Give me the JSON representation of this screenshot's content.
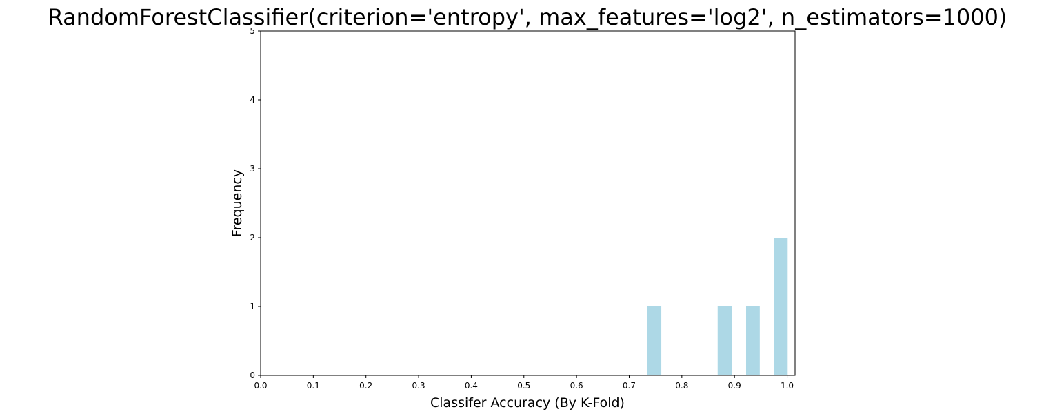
{
  "chart_data": {
    "type": "bar",
    "title": "RandomForestClassifier(criterion='entropy', max_features='log2', n_estimators=1000)",
    "xlabel": "Classifer Accuracy (By K-Fold)",
    "ylabel": "Frequency",
    "xlim": [
      0.0,
      1.015
    ],
    "ylim": [
      0,
      5
    ],
    "xticks": [
      "0.0",
      "0.1",
      "0.2",
      "0.3",
      "0.4",
      "0.5",
      "0.6",
      "0.7",
      "0.8",
      "0.9",
      "1.0"
    ],
    "yticks": [
      "0",
      "1",
      "2",
      "3",
      "4",
      "5"
    ],
    "bar_color": "#add8e6",
    "bars": [
      {
        "x_start": 0.734,
        "x_end": 0.761,
        "value": 1
      },
      {
        "x_start": 0.868,
        "x_end": 0.895,
        "value": 1
      },
      {
        "x_start": 0.922,
        "x_end": 0.948,
        "value": 1
      },
      {
        "x_start": 0.975,
        "x_end": 1.001,
        "value": 2
      }
    ],
    "grid": false,
    "legend": "none"
  }
}
